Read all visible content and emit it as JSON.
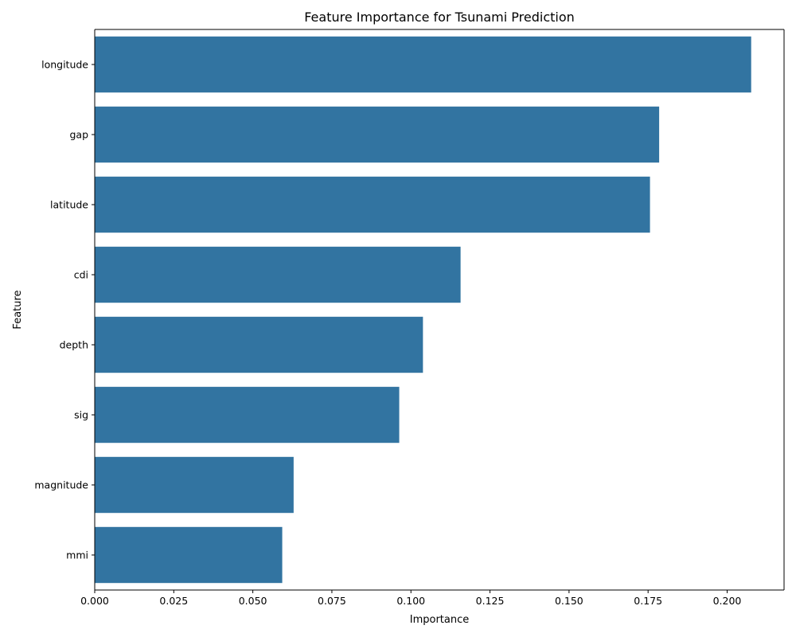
{
  "chart_data": {
    "type": "bar",
    "orientation": "horizontal",
    "title": "Feature Importance for Tsunami Prediction",
    "xlabel": "Importance",
    "ylabel": "Feature",
    "categories": [
      "longitude",
      "gap",
      "latitude",
      "cdi",
      "depth",
      "sig",
      "magnitude",
      "mmi"
    ],
    "values": [
      0.2076,
      0.1785,
      0.1756,
      0.1157,
      0.1038,
      0.0963,
      0.0629,
      0.0593
    ],
    "xlim": [
      0,
      0.218
    ],
    "xticks": [
      "0.000",
      "0.025",
      "0.050",
      "0.075",
      "0.100",
      "0.125",
      "0.150",
      "0.175",
      "0.200"
    ],
    "bar_color": "#3274a1",
    "grid": false,
    "legend": "none"
  }
}
